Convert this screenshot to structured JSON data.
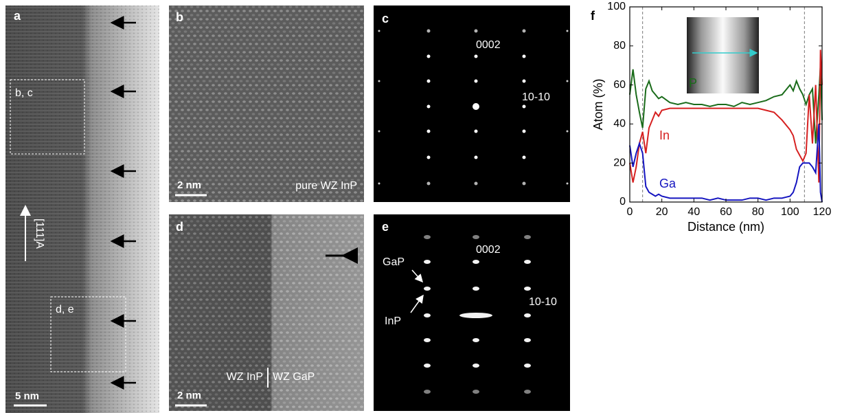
{
  "panels": {
    "a": {
      "label": "a",
      "boxes": [
        "b, c",
        "d, e"
      ],
      "direction": "[111]A",
      "scale_bar": "5 nm"
    },
    "b": {
      "label": "b",
      "scale_bar": "2 nm",
      "caption": "pure WZ InP"
    },
    "c": {
      "label": "c",
      "spots": [
        "0002",
        "10-10"
      ]
    },
    "d": {
      "label": "d",
      "scale_bar": "2 nm",
      "captions": [
        "WZ InP",
        "WZ GaP"
      ]
    },
    "e": {
      "label": "e",
      "spots": [
        "0002",
        "10-10"
      ],
      "arrows": [
        "GaP",
        "InP"
      ]
    },
    "f": {
      "label": "f"
    }
  },
  "chart_data": {
    "type": "line",
    "xlabel": "Distance (nm)",
    "ylabel": "Atom (%)",
    "x": [
      0,
      2,
      4,
      6,
      8,
      10,
      12,
      14,
      16,
      18,
      20,
      25,
      30,
      35,
      40,
      45,
      50,
      55,
      60,
      65,
      70,
      75,
      80,
      85,
      90,
      95,
      100,
      102,
      104,
      106,
      108,
      110,
      112,
      114,
      116,
      118,
      119,
      120
    ],
    "series": [
      {
        "name": "P",
        "color": "#1a6b1a",
        "values": [
          55,
          68,
          55,
          46,
          38,
          58,
          62,
          57,
          55,
          53,
          54,
          51,
          50,
          51,
          50,
          50,
          49,
          50,
          50,
          49,
          51,
          50,
          51,
          52,
          54,
          55,
          60,
          57,
          62,
          58,
          55,
          50,
          55,
          58,
          30,
          55,
          70,
          42
        ]
      },
      {
        "name": "In",
        "color": "#d62020",
        "values": [
          20,
          10,
          18,
          30,
          36,
          25,
          38,
          42,
          46,
          44,
          47,
          48,
          48,
          48,
          48,
          48,
          48,
          48,
          48,
          48,
          48,
          48,
          48,
          47,
          46,
          42,
          37,
          34,
          27,
          24,
          21,
          25,
          55,
          30,
          60,
          10,
          78,
          60
        ]
      },
      {
        "name": "Ga",
        "color": "#1515c0",
        "values": [
          29,
          18,
          25,
          30,
          25,
          8,
          5,
          4,
          3,
          4,
          3,
          2,
          2,
          2,
          2,
          2,
          1,
          2,
          1,
          1,
          1,
          2,
          2,
          1,
          2,
          2,
          3,
          5,
          10,
          18,
          20,
          20,
          20,
          18,
          15,
          40,
          5,
          0
        ]
      }
    ],
    "xlim": [
      0,
      120
    ],
    "ylim": [
      0,
      100
    ],
    "xticks": [
      0,
      20,
      40,
      60,
      80,
      100,
      120
    ],
    "yticks": [
      0,
      20,
      40,
      60,
      80,
      100
    ],
    "reference_lines": [
      8,
      109
    ]
  }
}
